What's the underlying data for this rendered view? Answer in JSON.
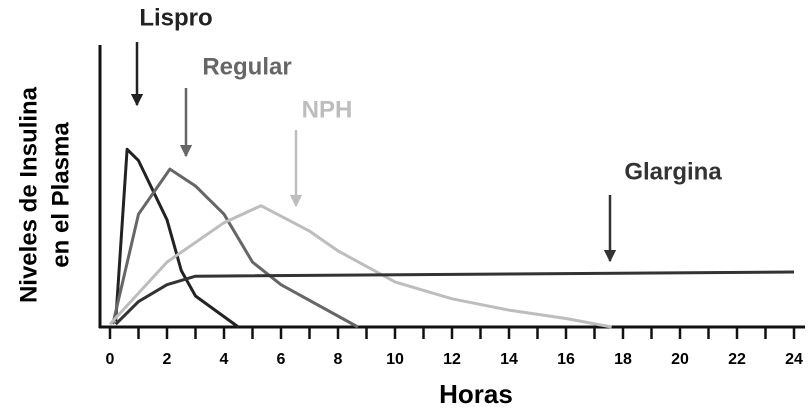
{
  "chart_data": {
    "type": "line",
    "xlabel": "Horas",
    "ylabel": [
      "Niveles de Insulina",
      "en el Plasma"
    ],
    "xlim": [
      0,
      24
    ],
    "ylim": [
      0,
      100
    ],
    "xticks": [
      0,
      2,
      4,
      6,
      8,
      10,
      12,
      14,
      16,
      18,
      20,
      22,
      24
    ],
    "xminor_ticks": [
      1,
      3,
      5,
      7,
      9,
      11,
      13,
      15,
      17,
      19,
      21,
      23
    ],
    "series": [
      {
        "name": "Lispro",
        "color": "#222222",
        "x": [
          0.2,
          0.6,
          1.0,
          2.0,
          2.5,
          3.0,
          4.5
        ],
        "values": [
          2,
          63,
          59,
          38,
          20,
          11,
          0
        ]
      },
      {
        "name": "Regular",
        "color": "#666666",
        "x": [
          0.1,
          1.0,
          2.1,
          3.0,
          4.0,
          5.0,
          6.0,
          8.7
        ],
        "values": [
          1,
          40,
          56,
          50,
          40,
          23,
          15,
          0
        ]
      },
      {
        "name": "NPH",
        "color": "#bdbdbd",
        "x": [
          0,
          2,
          4,
          5.3,
          7,
          8,
          10,
          12,
          14,
          16,
          17.6
        ],
        "values": [
          1,
          23,
          37,
          43,
          34,
          27,
          16,
          10,
          6,
          3,
          0
        ]
      },
      {
        "name": "Glargina",
        "color": "#333333",
        "x": [
          0.2,
          1,
          2,
          3,
          24
        ],
        "values": [
          1,
          9,
          15,
          18,
          19.5
        ]
      }
    ]
  }
}
